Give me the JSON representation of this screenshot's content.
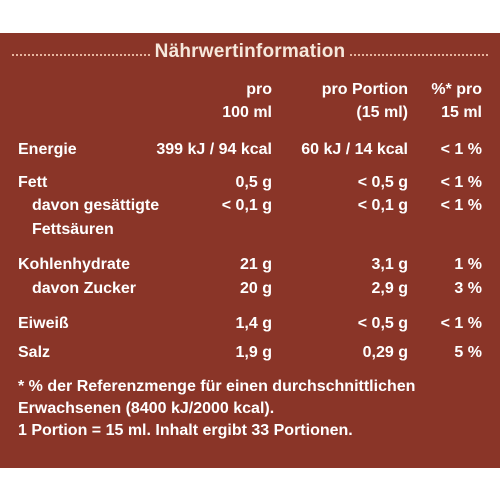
{
  "title": "Nährwertinformation",
  "headers": {
    "col1_line1": "pro",
    "col1_line2": "100 ml",
    "col2_line1": "pro Portion",
    "col2_line2": "(15 ml)",
    "col3_line1": "%* pro",
    "col3_line2": "15 ml"
  },
  "rows": [
    {
      "label": "Energie",
      "per100": "399 kJ / 94 kcal",
      "portion": "60 kJ / 14 kcal",
      "percent": "< 1 %"
    },
    {
      "label": "Fett",
      "per100": "0,5 g",
      "portion": "< 0,5 g",
      "percent": "< 1 %"
    },
    {
      "label": "davon gesättigte",
      "label2": "Fettsäuren",
      "per100": "< 0,1 g",
      "portion": "< 0,1 g",
      "percent": "< 1 %"
    },
    {
      "label": "Kohlenhydrate",
      "per100": "21 g",
      "portion": "3,1 g",
      "percent": "1 %"
    },
    {
      "label": "davon Zucker",
      "per100": "20 g",
      "portion": "2,9 g",
      "percent": "3 %"
    },
    {
      "label": "Eiweiß",
      "per100": "1,4 g",
      "portion": "< 0,5 g",
      "percent": "< 1 %"
    },
    {
      "label": "Salz",
      "per100": "1,9 g",
      "portion": "0,29 g",
      "percent": "5 %"
    }
  ],
  "footnote": {
    "line1": "* % der Referenzmenge für einen durchschnittlichen",
    "line2": "Erwachsenen (8400 kJ/2000 kcal).",
    "line3": "1 Portion = 15 ml. Inhalt ergibt 33 Portionen."
  },
  "colors": {
    "panel": "#8a3528",
    "title": "#f6e8dc",
    "dots": "#e6b59f",
    "text": "#ffffff"
  }
}
